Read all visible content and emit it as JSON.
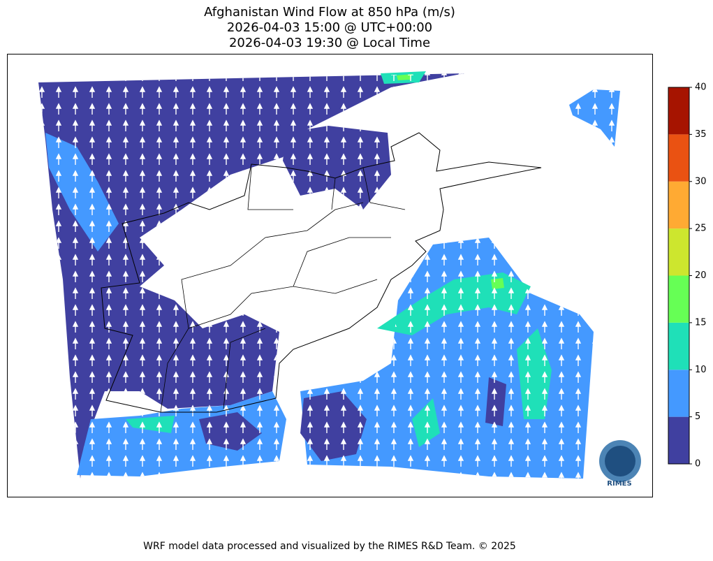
{
  "title": [
    "Afghanistan Wind Flow at 850 hPa (m/s)",
    "2026-04-03 15:00 @ UTC+00:00",
    "2026-04-03 19:30 @ Local Time"
  ],
  "colorbar": {
    "levels": [
      0,
      5,
      10,
      15,
      20,
      25,
      30,
      35,
      40
    ],
    "colors": [
      "#4040a0",
      "#4499ff",
      "#1fe0b8",
      "#66ff55",
      "#cde62e",
      "#ffaa33",
      "#ea5212",
      "#a61400"
    ]
  },
  "logo": "RIMES",
  "footer": "WRF model data processed and visualized by the RIMES R&D Team. © 2025"
}
